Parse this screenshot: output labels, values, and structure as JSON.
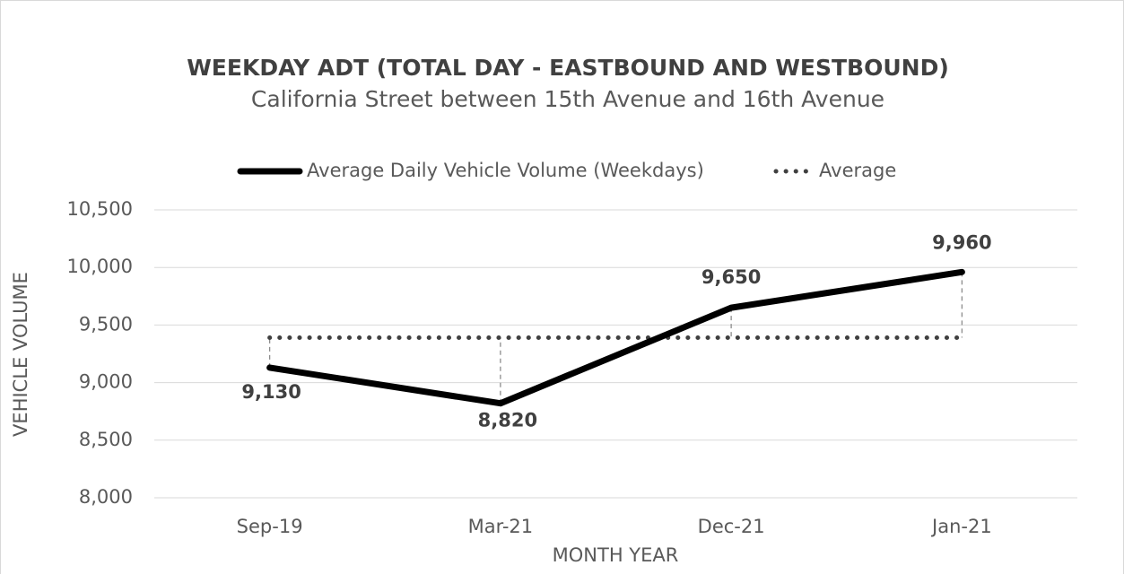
{
  "chart_data": {
    "type": "line",
    "title": "WEEKDAY ADT (TOTAL DAY - EASTBOUND AND WESTBOUND)",
    "subtitle": "California Street between 15th Avenue and 16th Avenue",
    "x_label": "MONTH YEAR",
    "y_label": "VEHICLE VOLUME",
    "categories": [
      "Sep-19",
      "Mar-21",
      "Dec-21",
      "Jan-21"
    ],
    "series": [
      {
        "name": "Average Daily Vehicle Volume (Weekdays)",
        "color": "#000000",
        "style": "solid",
        "values": [
          9130,
          8820,
          9650,
          9960
        ],
        "value_labels": [
          "9,130",
          "8,820",
          "9,650",
          "9,960"
        ]
      },
      {
        "name": "Average",
        "color": "#404040",
        "style": "dotted",
        "values": [
          9390,
          9390,
          9390,
          9390
        ]
      }
    ],
    "ylim": [
      8000,
      10500
    ],
    "yticks": [
      {
        "value": 8000,
        "label": "8,000"
      },
      {
        "value": 8500,
        "label": "8,500"
      },
      {
        "value": 9000,
        "label": "9,000"
      },
      {
        "value": 9500,
        "label": "9,500"
      },
      {
        "value": 10000,
        "label": "10,000"
      },
      {
        "value": 10500,
        "label": "10,500"
      }
    ],
    "grid": true,
    "legend": "top"
  }
}
